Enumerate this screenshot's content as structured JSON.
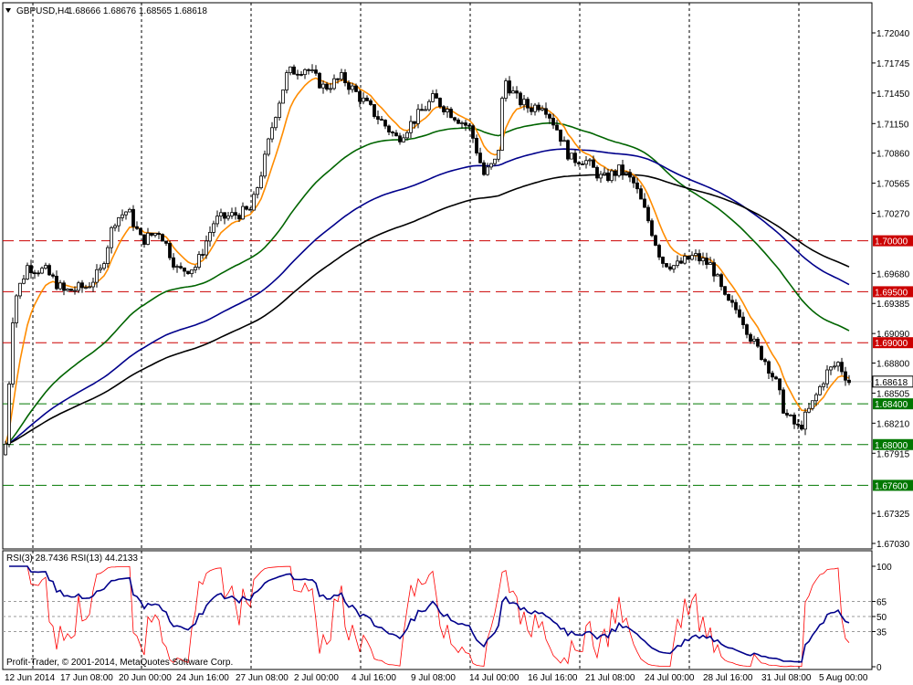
{
  "header": {
    "symbol": "GBPUSD,H4",
    "ohlc": "1.68666 1.68676 1.68565 1.68618"
  },
  "rsi_header": "RSI(3) 28.7436  RSI(13) 44.2133",
  "copyright": "Profit-Trader, © 2001-2014, MetaQuotes Software Corp.",
  "price_axis": {
    "ticks": [
      "1.72040",
      "1.71745",
      "1.71450",
      "1.71150",
      "1.70860",
      "1.70565",
      "1.70270",
      "1.69680",
      "1.69385",
      "1.69090",
      "1.68800",
      "1.68505",
      "1.68210",
      "1.67915",
      "1.67325",
      "1.67030"
    ],
    "current": "1.68618"
  },
  "levels": [
    {
      "label": "1.70000",
      "color": "#cc0000"
    },
    {
      "label": "1.69500",
      "color": "#cc0000"
    },
    {
      "label": "1.69000",
      "color": "#cc0000"
    },
    {
      "label": "1.68400",
      "color": "#007700"
    },
    {
      "label": "1.68000",
      "color": "#007700"
    },
    {
      "label": "1.67600",
      "color": "#007700"
    }
  ],
  "rsi_axis": [
    "100",
    "65",
    "50",
    "35",
    "0"
  ],
  "time_axis": [
    "12 Jun 2014",
    "17 Jun 08:00",
    "20 Jun 00:00",
    "24 Jun 16:00",
    "27 Jun 08:00",
    "2 Jul 00:00",
    "4 Jul 16:00",
    "9 Jul 08:00",
    "14 Jul 00:00",
    "16 Jul 16:00",
    "21 Jul 08:00",
    "24 Jul 00:00",
    "28 Jul 16:00",
    "31 Jul 08:00",
    "5 Aug 00:00"
  ],
  "colors": {
    "ma_fast": "#ff8c00",
    "ma_mid": "#006400",
    "ma_slow_blue": "#00008b",
    "ma_slow_black": "#000000",
    "rsi_fast": "#ff0000",
    "rsi_slow": "#00008b"
  }
}
